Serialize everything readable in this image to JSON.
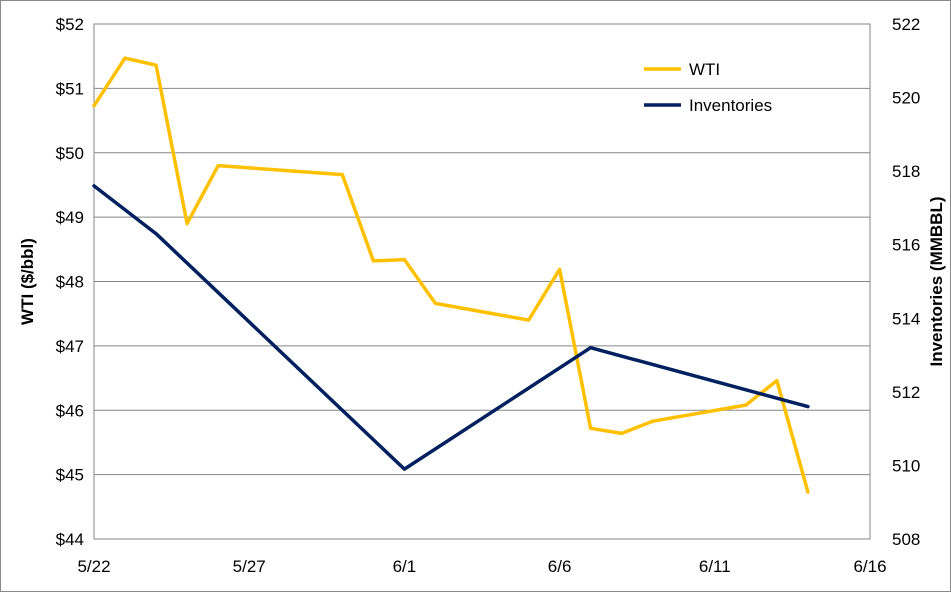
{
  "chart_data": {
    "type": "line",
    "xlabel": "",
    "x_ticks": [
      "5/22",
      "5/27",
      "6/1",
      "6/6",
      "6/11",
      "6/16"
    ],
    "xlim": [
      "5/22",
      "6/16"
    ],
    "ylabel_left": "WTI ($/bbl)",
    "ylim_left": [
      44,
      52
    ],
    "yticks_left": [
      "$44",
      "$45",
      "$46",
      "$47",
      "$48",
      "$49",
      "$50",
      "$51",
      "$52"
    ],
    "ylabel_right": "Inventories (MMBBL)",
    "ylim_right": [
      508,
      522
    ],
    "yticks_right": [
      "508",
      "510",
      "512",
      "514",
      "516",
      "518",
      "520",
      "522"
    ],
    "grid": true,
    "legend": "top-right",
    "series": [
      {
        "name": "WTI",
        "axis": "left",
        "color": "#FFC000",
        "x": [
          "5/22",
          "5/23",
          "5/24",
          "5/25",
          "5/26",
          "5/30",
          "5/31",
          "6/1",
          "6/2",
          "6/5",
          "6/6",
          "6/7",
          "6/8",
          "6/9",
          "6/12",
          "6/13",
          "6/14"
        ],
        "values": [
          50.73,
          51.47,
          51.36,
          48.9,
          49.8,
          49.66,
          48.32,
          48.34,
          47.66,
          47.4,
          48.19,
          45.72,
          45.64,
          45.83,
          46.08,
          46.46,
          44.73
        ]
      },
      {
        "name": "Inventories",
        "axis": "right",
        "color": "#002060",
        "x": [
          "5/22",
          "5/24",
          "6/1",
          "6/7",
          "6/14"
        ],
        "values": [
          517.6,
          516.3,
          509.9,
          513.2,
          511.6
        ]
      }
    ]
  }
}
